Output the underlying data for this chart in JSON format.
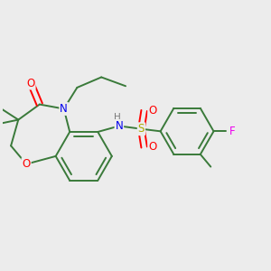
{
  "bg_color": "#ececec",
  "bond_color": "#3a7a3a",
  "atom_colors": {
    "O": "#ff0000",
    "N": "#0000ee",
    "S": "#aaaa00",
    "F": "#ee00ee",
    "H": "#7a7a7a",
    "C": "#3a7a3a"
  },
  "figsize": [
    3.0,
    3.0
  ],
  "dpi": 100
}
